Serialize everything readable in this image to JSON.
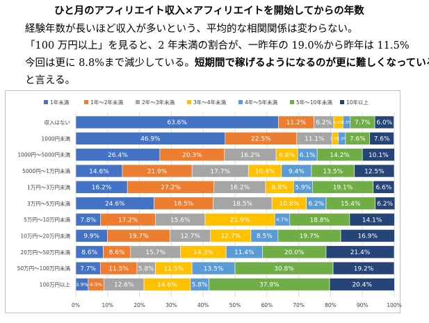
{
  "text": {
    "title": "ひと月のアフィリエイト収入×アフィリエイトを開始してからの年数",
    "line1": "経験年数が長いほど収入が多いという、平均的な相関関係は変わらない。",
    "line2": "「100 万円以上」を見ると、2 年未満の割合が、一昨年の 19.0%から昨年は 11.5%",
    "line3_normal": "今回は更に 8.8%まで減少している。",
    "line3_bold": "短期間で稼げるようになるのが更に難しくなっている",
    "line4": "と言える。"
  },
  "chart_data": {
    "type": "bar",
    "orientation": "horizontal",
    "stacked": true,
    "percent": true,
    "categories": [
      "収入はない",
      "1000円未満",
      "1000円〜5000円未満",
      "5000円〜1万円未満",
      "1万円〜3万円未満",
      "3万円〜5万円未満",
      "5万円〜10万円未満",
      "10万円〜20万円未満",
      "20万円〜50万円未満",
      "50万円〜100万円未満",
      "100万円以上"
    ],
    "series": [
      {
        "name": "1年未満",
        "color": "#4472c4",
        "values": [
          63.6,
          46.9,
          26.4,
          14.6,
          16.2,
          24.6,
          7.8,
          9.9,
          8.6,
          7.7,
          3.9
        ]
      },
      {
        "name": "1年〜2年未満",
        "color": "#ed7d31",
        "values": [
          11.2,
          22.5,
          20.3,
          21.9,
          27.2,
          18.5,
          17.2,
          19.7,
          8.6,
          11.5,
          4.9
        ]
      },
      {
        "name": "2年〜3年未満",
        "color": "#a5a5a5",
        "values": [
          6.2,
          11.1,
          16.2,
          17.7,
          16.2,
          18.5,
          15.6,
          12.7,
          15.7,
          5.8,
          12.6
        ]
      },
      {
        "name": "3年〜4年未満",
        "color": "#ffc000",
        "values": [
          2.9,
          1.9,
          6.8,
          10.4,
          8.8,
          10.8,
          21.9,
          12.7,
          14.3,
          11.5,
          14.6
        ]
      },
      {
        "name": "4年〜5年未満",
        "color": "#5b9bd5",
        "values": [
          2.3,
          2.3,
          6.1,
          9.4,
          5.9,
          6.2,
          4.7,
          8.5,
          11.4,
          13.5,
          5.8
        ]
      },
      {
        "name": "5年〜10年未満",
        "color": "#70ad47",
        "values": [
          7.7,
          7.6,
          14.2,
          13.5,
          19.1,
          15.4,
          18.8,
          19.7,
          20.0,
          30.8,
          37.9
        ]
      },
      {
        "name": "10年以上",
        "color": "#264478",
        "values": [
          6.0,
          7.6,
          10.1,
          12.5,
          6.6,
          6.2,
          14.1,
          16.9,
          21.4,
          19.2,
          20.4
        ]
      }
    ],
    "xlim": [
      0,
      100
    ],
    "xticks": [
      "0%",
      "10%",
      "20%",
      "30%",
      "40%",
      "50%",
      "60%",
      "70%",
      "80%",
      "90%",
      "100%"
    ],
    "legend_position": "top",
    "grid": true
  }
}
